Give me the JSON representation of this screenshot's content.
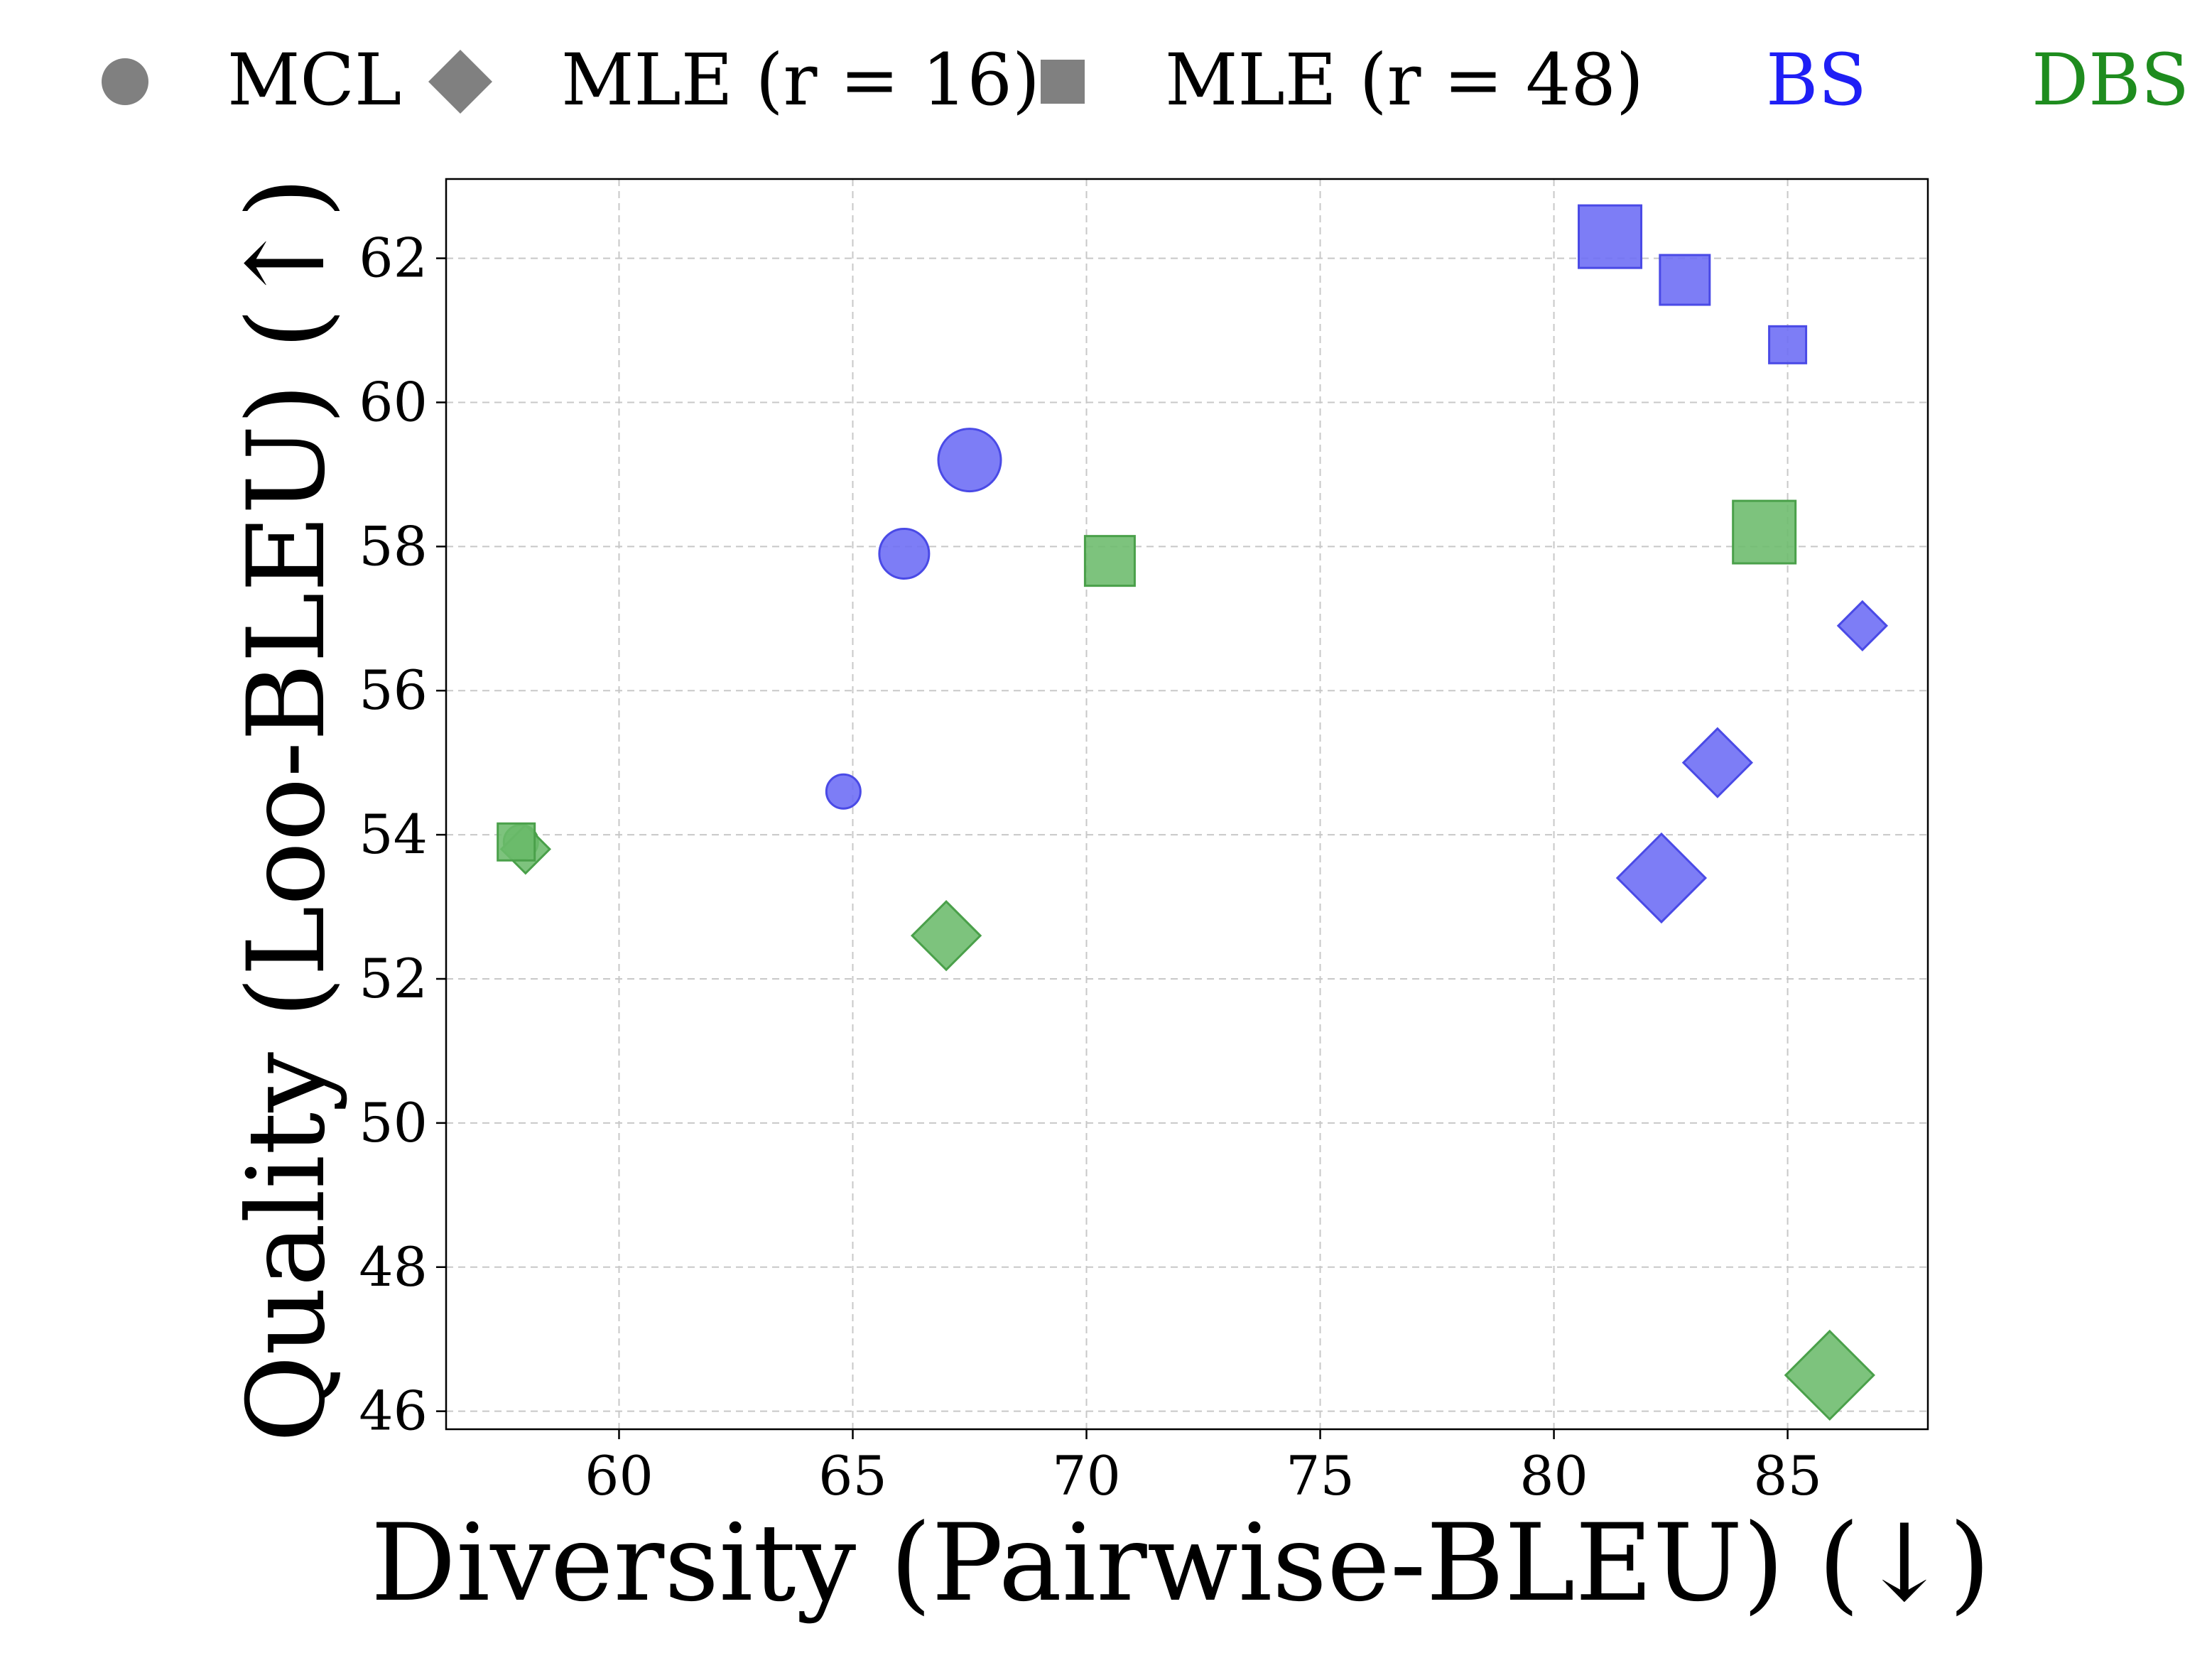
{
  "chart_data": {
    "type": "scatter",
    "xlabel": "Diversity (Pairwise-BLEU) (↓)",
    "ylabel": "Quality (Loo-BLEU) (↑)",
    "xlim": [
      56.3,
      88.0
    ],
    "ylim": [
      45.75,
      63.1
    ],
    "xticks": [
      60,
      65,
      70,
      75,
      80,
      85
    ],
    "yticks": [
      46,
      48,
      50,
      52,
      54,
      56,
      58,
      60,
      62
    ],
    "grid": true,
    "legend_position": "top",
    "legend": {
      "shapes": [
        {
          "marker": "circle",
          "label": "MCL"
        },
        {
          "marker": "diamond",
          "label": "MLE (r = 16)"
        },
        {
          "marker": "square",
          "label": "MLE (r = 48)"
        }
      ],
      "colors": [
        {
          "label": "BS",
          "color": "#1f1ff5"
        },
        {
          "label": "DBS",
          "color": "#1e8c1e"
        }
      ]
    },
    "colors": {
      "BS": "#6b6bf5",
      "DBS": "#6bbb6b",
      "BS_edge": "#4a4ae6",
      "DBS_edge": "#4aa04a",
      "legend_marker": "#808080"
    },
    "points": [
      {
        "x": 64.8,
        "y": 54.6,
        "marker": "circle",
        "group": "BS",
        "size": 1
      },
      {
        "x": 66.1,
        "y": 57.9,
        "marker": "circle",
        "group": "BS",
        "size": 2
      },
      {
        "x": 67.5,
        "y": 59.2,
        "marker": "circle",
        "group": "BS",
        "size": 3
      },
      {
        "x": 82.3,
        "y": 53.4,
        "marker": "diamond",
        "group": "BS",
        "size": 3
      },
      {
        "x": 83.5,
        "y": 55.0,
        "marker": "diamond",
        "group": "BS",
        "size": 2
      },
      {
        "x": 86.6,
        "y": 56.9,
        "marker": "diamond",
        "group": "BS",
        "size": 1
      },
      {
        "x": 81.2,
        "y": 62.3,
        "marker": "square",
        "group": "BS",
        "size": 3
      },
      {
        "x": 82.8,
        "y": 61.7,
        "marker": "square",
        "group": "BS",
        "size": 2
      },
      {
        "x": 85.0,
        "y": 60.8,
        "marker": "square",
        "group": "BS",
        "size": 1
      },
      {
        "x": 57.9,
        "y": 53.9,
        "marker": "circle",
        "group": "DBS",
        "size": 1
      },
      {
        "x": 58.0,
        "y": 53.8,
        "marker": "diamond",
        "group": "DBS",
        "size": 1
      },
      {
        "x": 67.0,
        "y": 52.6,
        "marker": "diamond",
        "group": "DBS",
        "size": 2
      },
      {
        "x": 85.9,
        "y": 46.5,
        "marker": "diamond",
        "group": "DBS",
        "size": 3
      },
      {
        "x": 57.8,
        "y": 53.9,
        "marker": "square",
        "group": "DBS",
        "size": 1
      },
      {
        "x": 70.5,
        "y": 57.8,
        "marker": "square",
        "group": "DBS",
        "size": 2
      },
      {
        "x": 84.5,
        "y": 58.2,
        "marker": "square",
        "group": "DBS",
        "size": 3
      }
    ]
  }
}
